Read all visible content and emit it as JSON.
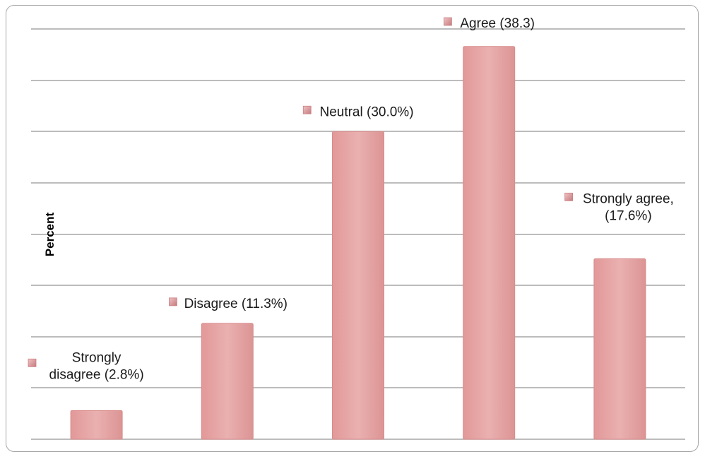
{
  "chart_data": {
    "type": "bar",
    "categories": [
      "Strongly disagree",
      "Disagree",
      "Neutral",
      "Agree",
      "Strongly agree"
    ],
    "values": [
      2.8,
      11.3,
      30.0,
      38.3,
      17.6
    ],
    "data_labels": [
      [
        "Strongly",
        "disagree (2.8%)"
      ],
      [
        "Disagree (11.3%)"
      ],
      [
        "Neutral (30.0%)"
      ],
      [
        "Agree (38.3)"
      ],
      [
        "Strongly agree,",
        "(17.6%)"
      ]
    ],
    "title": "",
    "xlabel": "",
    "ylabel": "Percent",
    "ylim": [
      0,
      40
    ],
    "gridlines": true,
    "bar_color": "#e8a5a5",
    "marker_color": "#c97f82"
  }
}
